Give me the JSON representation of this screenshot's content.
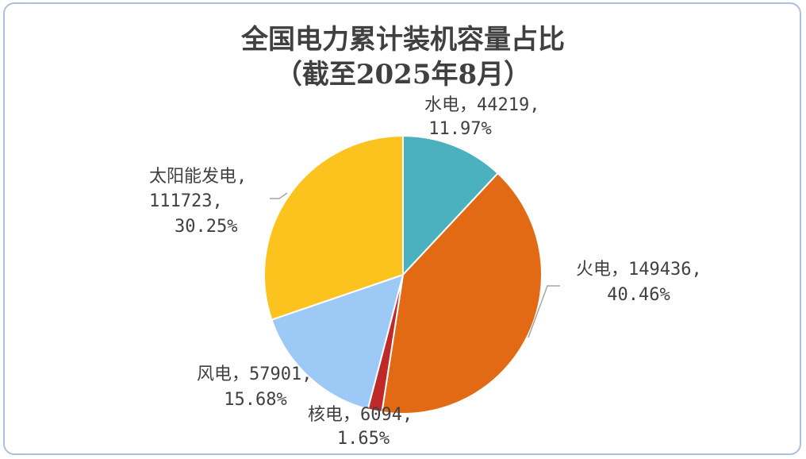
{
  "chart_data": {
    "type": "pie",
    "title_line1": "全国电力累计装机容量占比",
    "title_line2": "（截至2025年8月）",
    "slices": [
      {
        "name": "水电",
        "value": 44219,
        "percent": "11.97%",
        "color": "#4bb1bf",
        "label_line1": "水电，44219,",
        "label_line2": "11.97%"
      },
      {
        "name": "火电",
        "value": 149436,
        "percent": "40.46%",
        "color": "#e36a14",
        "label_line1": "火电，149436,",
        "label_line2": "40.46%"
      },
      {
        "name": "核电",
        "value": 6094,
        "percent": "1.65%",
        "color": "#c0292a",
        "label_line1": "核电，6094,",
        "label_line2": "1.65%"
      },
      {
        "name": "风电",
        "value": 57901,
        "percent": "15.68%",
        "color": "#9dc9f7",
        "label_line1": "风电，57901,",
        "label_line2": "15.68%"
      },
      {
        "name": "太阳能发电",
        "value": 111723,
        "percent": "30.25%",
        "color": "#fcc21d",
        "label_line1": "太阳能发电,",
        "label_line2": "111723,",
        "label_line3": "30.25%"
      }
    ]
  }
}
